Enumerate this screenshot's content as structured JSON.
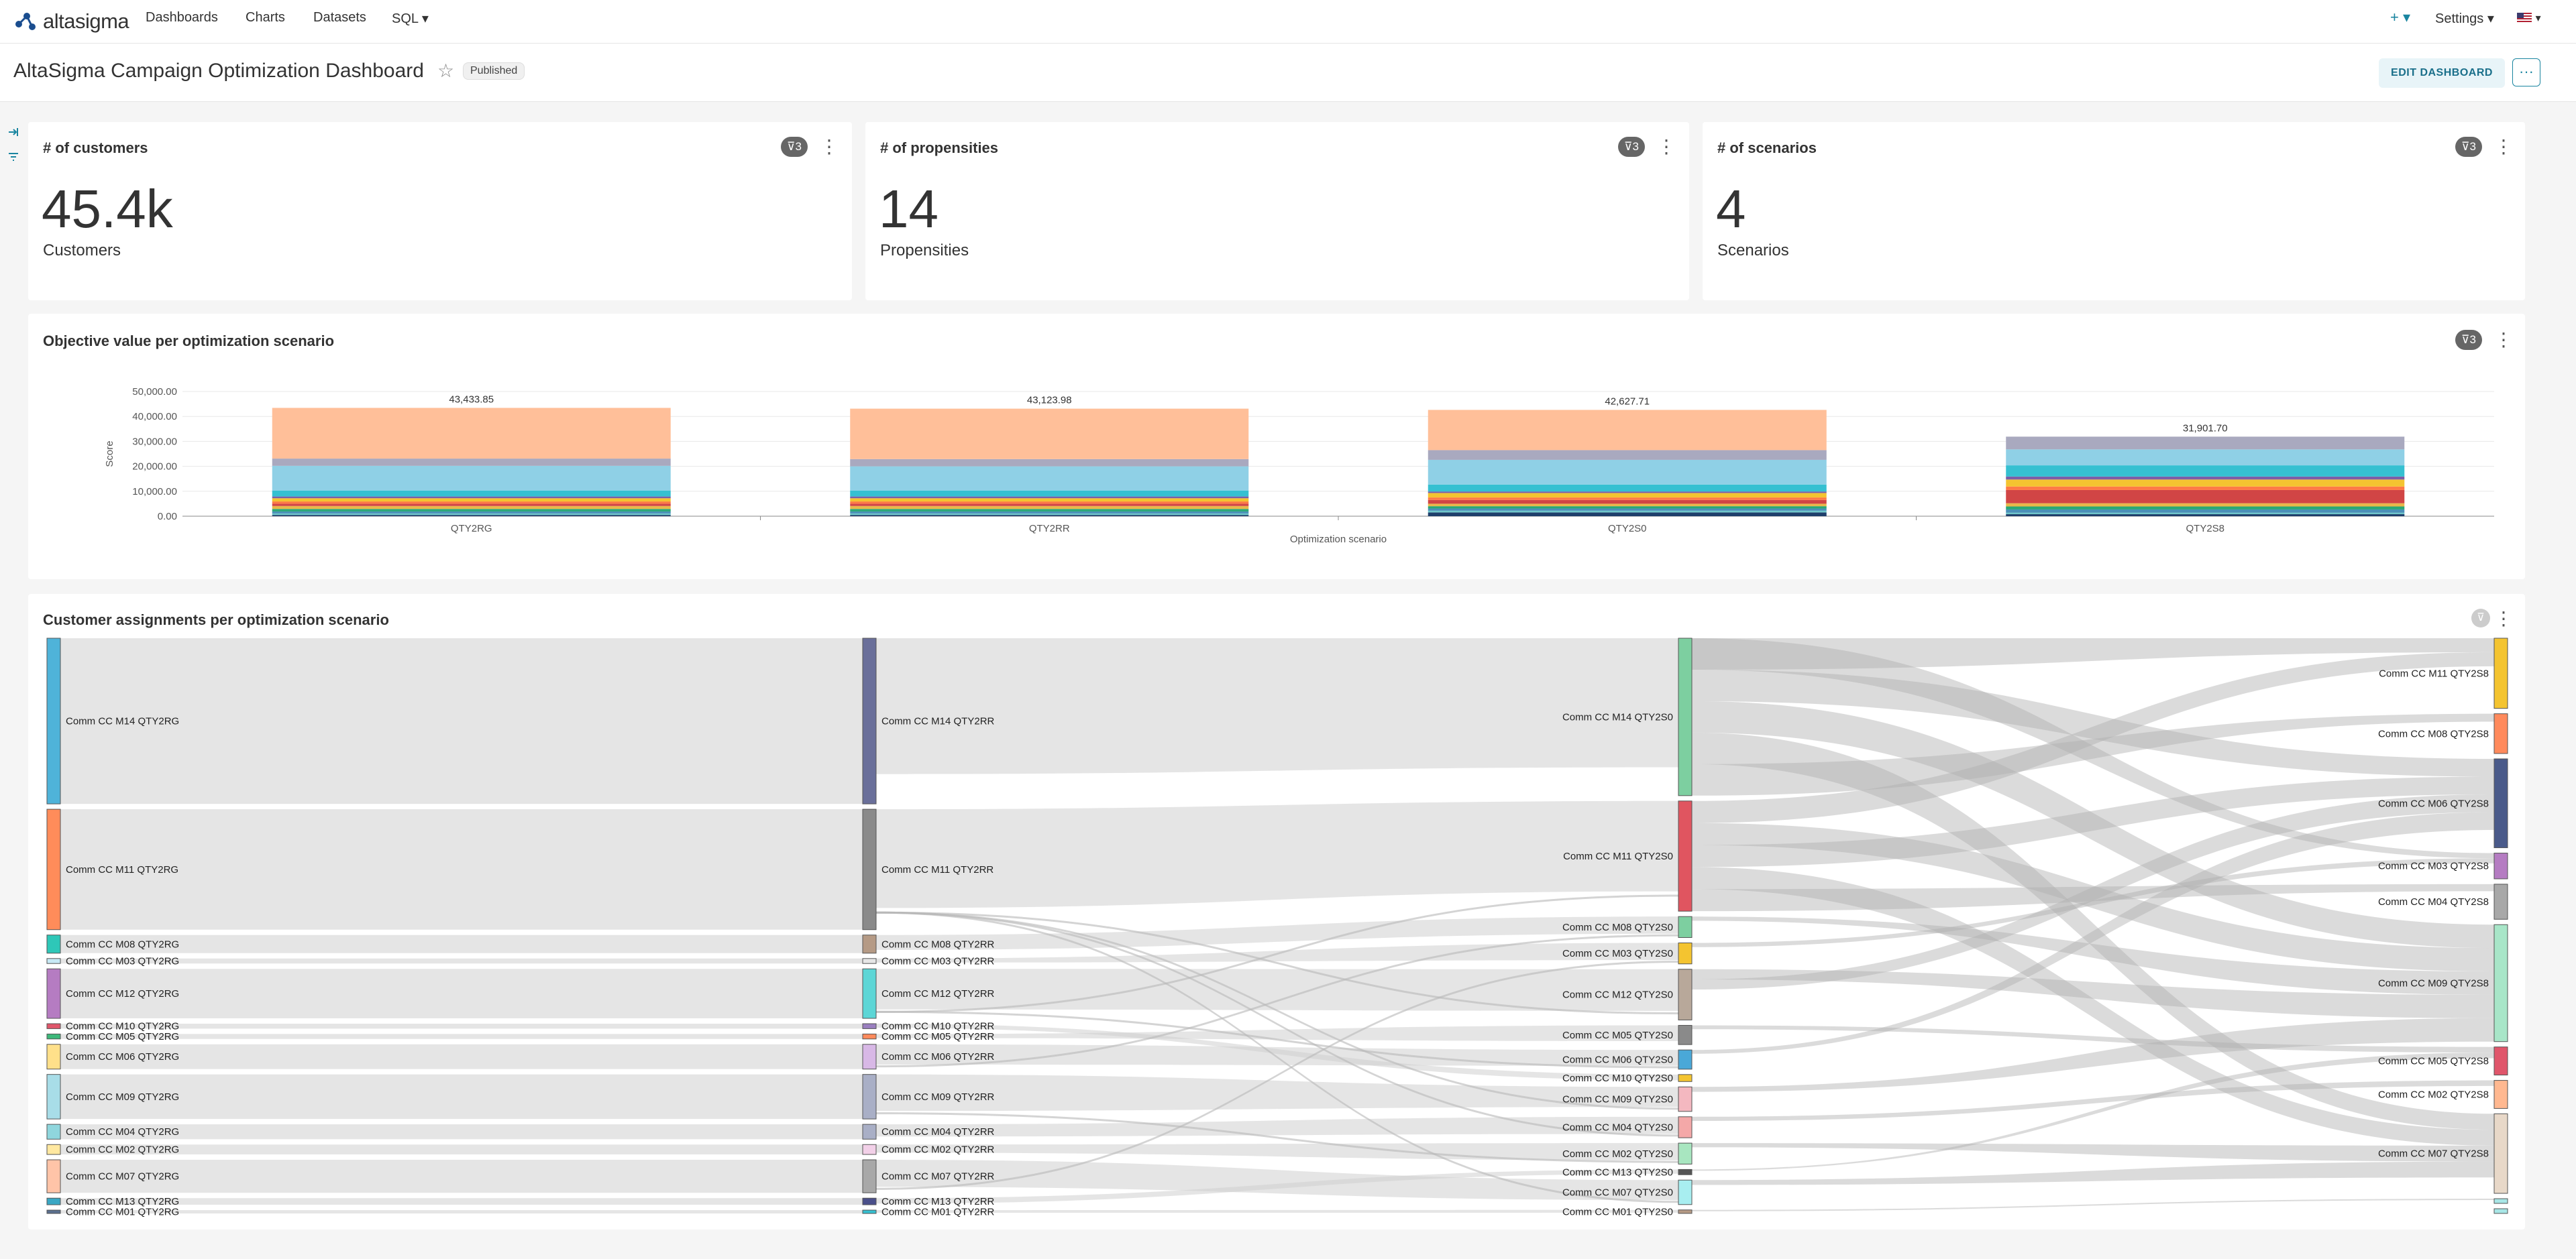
{
  "navbar": {
    "logo_text": "altasigma",
    "items": [
      "Dashboards",
      "Charts",
      "Datasets",
      "SQL ▾"
    ],
    "plus_label": "+ ▾",
    "settings_label": "Settings ▾",
    "flag_caret": "▾"
  },
  "header": {
    "title": "AltaSigma Campaign Optimization Dashboard",
    "status": "Published",
    "edit_label": "EDIT DASHBOARD",
    "more_label": "···"
  },
  "kpis": [
    {
      "title": "# of customers",
      "value": "45.4k",
      "subheader": "Customers",
      "filter_count": "3"
    },
    {
      "title": "# of propensities",
      "value": "14",
      "subheader": "Propensities",
      "filter_count": "3"
    },
    {
      "title": "# of scenarios",
      "value": "4",
      "subheader": "Scenarios",
      "filter_count": "3"
    }
  ],
  "bar_card": {
    "title": "Objective value per optimization scenario",
    "filter_count": "3"
  },
  "sankey_card": {
    "title": "Customer assignments per optimization scenario"
  },
  "chart_data": [
    {
      "type": "bar",
      "stacked": true,
      "categories": [
        "QTY2RG",
        "QTY2RR",
        "QTY2S0",
        "QTY2S8"
      ],
      "totals": [
        43433.85,
        43123.98,
        42627.71,
        31901.7
      ],
      "total_labels": [
        "43,433.85",
        "43,123.98",
        "42,627.71",
        "31,901.70"
      ],
      "xlabel": "Optimization scenario",
      "ylabel": "Score",
      "ylim": [
        0,
        50000
      ],
      "y_ticks": [
        "0.00",
        "10,000.00",
        "20,000.00",
        "30,000.00",
        "40,000.00",
        "50,000.00"
      ],
      "grid": true,
      "segment_colors": [
        "#1f3f6b",
        "#6ec6ca",
        "#4a90b8",
        "#2aa876",
        "#e8b84a",
        "#d14545",
        "#ff7a45",
        "#f4c430",
        "#7b5ea7",
        "#35c0d1",
        "#8fd0e6",
        "#a9a9bf",
        "#ffbf99"
      ],
      "segments": [
        [
          500,
          600,
          800,
          1000,
          1200,
          900,
          900,
          1300,
          700,
          2400,
          9900,
          2900,
          20333.85
        ],
        [
          500,
          600,
          800,
          1000,
          1200,
          900,
          900,
          1300,
          700,
          2400,
          9700,
          2900,
          20223.98
        ],
        [
          1500,
          700,
          900,
          900,
          1000,
          1500,
          1000,
          1800,
          600,
          2800,
          9900,
          3900,
          16127.71
        ],
        [
          800,
          600,
          1300,
          1200,
          1300,
          5300,
          1400,
          2800,
          1200,
          4500,
          6400,
          5101.7,
          0
        ]
      ]
    },
    {
      "type": "sankey",
      "columns": [
        {
          "scenario": "QTY2RG",
          "nodes": [
            {
              "label": "Comm CC M14 QTY2RG",
              "value": 7030,
              "color": "#4fb3d9"
            },
            {
              "label": "Comm CC M11 QTY2RG",
              "value": 5110,
              "color": "#ff8c5a"
            },
            {
              "label": "Comm CC M08 QTY2RG",
              "value": 770,
              "color": "#2ec7b8"
            },
            {
              "label": "Comm CC M03 QTY2RG",
              "value": 210,
              "color": "#c7e9f5"
            },
            {
              "label": "Comm CC M12 QTY2RG",
              "value": 2100,
              "color": "#b57cc2"
            },
            {
              "label": "Comm CC M10 QTY2RG",
              "value": 210,
              "color": "#e0566b"
            },
            {
              "label": "Comm CC M05 QTY2RG",
              "value": 210,
              "color": "#3db87a"
            },
            {
              "label": "Comm CC M06 QTY2RG",
              "value": 1050,
              "color": "#ffe08a"
            },
            {
              "label": "Comm CC M09 QTY2RG",
              "value": 1890,
              "color": "#a8dde8"
            },
            {
              "label": "Comm CC M04 QTY2RG",
              "value": 630,
              "color": "#8fd6dd"
            },
            {
              "label": "Comm CC M02 QTY2RG",
              "value": 420,
              "color": "#ffe8a0"
            },
            {
              "label": "Comm CC M07 QTY2RG",
              "value": 1400,
              "color": "#ffc4a8"
            },
            {
              "label": "Comm CC M13 QTY2RG",
              "value": 280,
              "color": "#3aa7c4"
            },
            {
              "label": "Comm CC M01 QTY2RG",
              "value": 140,
              "color": "#5a6f8e"
            }
          ]
        },
        {
          "scenario": "QTY2RR",
          "nodes": [
            {
              "label": "Comm CC M14 QTY2RR",
              "value": 7030,
              "color": "#6a6f9a"
            },
            {
              "label": "Comm CC M11 QTY2RR",
              "value": 5110,
              "color": "#8a8a8a"
            },
            {
              "label": "Comm CC M08 QTY2RR",
              "value": 770,
              "color": "#b59a85"
            },
            {
              "label": "Comm CC M03 QTY2RR",
              "value": 210,
              "color": "#e6e6e6"
            },
            {
              "label": "Comm CC M12 QTY2RR",
              "value": 2100,
              "color": "#5cd6d6"
            },
            {
              "label": "Comm CC M10 QTY2RR",
              "value": 210,
              "color": "#9a7fc0"
            },
            {
              "label": "Comm CC M05 QTY2RR",
              "value": 210,
              "color": "#ff8a5c"
            },
            {
              "label": "Comm CC M06 QTY2RR",
              "value": 1050,
              "color": "#d8b8e6"
            },
            {
              "label": "Comm CC M09 QTY2RR",
              "value": 1890,
              "color": "#a9afc6"
            },
            {
              "label": "Comm CC M04 QTY2RR",
              "value": 630,
              "color": "#a9afc6"
            },
            {
              "label": "Comm CC M02 QTY2RR",
              "value": 420,
              "color": "#f2d0e8"
            },
            {
              "label": "Comm CC M07 QTY2RR",
              "value": 1400,
              "color": "#a8a8a8"
            },
            {
              "label": "Comm CC M13 QTY2RR",
              "value": 280,
              "color": "#4a4f8a"
            },
            {
              "label": "Comm CC M01 QTY2RR",
              "value": 140,
              "color": "#35c0d1"
            }
          ]
        },
        {
          "scenario": "QTY2S0",
          "nodes": [
            {
              "label": "Comm CC M14 QTY2S0",
              "value": 6300,
              "color": "#7dcfa0"
            },
            {
              "label": "Comm CC M11 QTY2S0",
              "value": 4410,
              "color": "#e05560"
            },
            {
              "label": "Comm CC M08 QTY2S0",
              "value": 840,
              "color": "#7dcfa0"
            },
            {
              "label": "Comm CC M03 QTY2S0",
              "value": 840,
              "color": "#f4c430"
            },
            {
              "label": "Comm CC M12 QTY2S0",
              "value": 2030,
              "color": "#b8a89a"
            },
            {
              "label": "Comm CC M05 QTY2S0",
              "value": 770,
              "color": "#8a8a8a"
            },
            {
              "label": "Comm CC M06 QTY2S0",
              "value": 770,
              "color": "#4aa8d8"
            },
            {
              "label": "Comm CC M10 QTY2S0",
              "value": 280,
              "color": "#f4c430"
            },
            {
              "label": "Comm CC M09 QTY2S0",
              "value": 980,
              "color": "#f4b8c0"
            },
            {
              "label": "Comm CC M04 QTY2S0",
              "value": 840,
              "color": "#f4a8a8"
            },
            {
              "label": "Comm CC M02 QTY2S0",
              "value": 840,
              "color": "#a8e6c0"
            },
            {
              "label": "Comm CC M13 QTY2S0",
              "value": 210,
              "color": "#555555"
            },
            {
              "label": "Comm CC M07 QTY2S0",
              "value": 980,
              "color": "#a8eef0"
            },
            {
              "label": "Comm CC M01 QTY2S0",
              "value": 140,
              "color": "#b59a85"
            }
          ]
        },
        {
          "scenario": "QTY2S8",
          "nodes": [
            {
              "label": "Comm CC M11 QTY2S8",
              "value": 2100,
              "color": "#f4c430"
            },
            {
              "label": "Comm CC M08 QTY2S8",
              "value": 1190,
              "color": "#ff8a5c"
            },
            {
              "label": "Comm CC M06 QTY2S8",
              "value": 2660,
              "color": "#4a5a8a"
            },
            {
              "label": "Comm CC M03 QTY2S8",
              "value": 770,
              "color": "#b57cc2"
            },
            {
              "label": "Comm CC M04 QTY2S8",
              "value": 1050,
              "color": "#a8a8a8"
            },
            {
              "label": "Comm CC M09 QTY2S8",
              "value": 3500,
              "color": "#a8e6c8"
            },
            {
              "label": "Comm CC M05 QTY2S8",
              "value": 840,
              "color": "#e0566b"
            },
            {
              "label": "Comm CC M02 QTY2S8",
              "value": 840,
              "color": "#ffb890"
            },
            {
              "label": "Comm CC M07 QTY2S8",
              "value": 2380,
              "color": "#e8d8c8"
            },
            {
              "label": "",
              "value": 140,
              "color": "#a8e6e6"
            },
            {
              "label": "",
              "value": 140,
              "color": "#a8e6e6"
            }
          ]
        }
      ]
    }
  ]
}
